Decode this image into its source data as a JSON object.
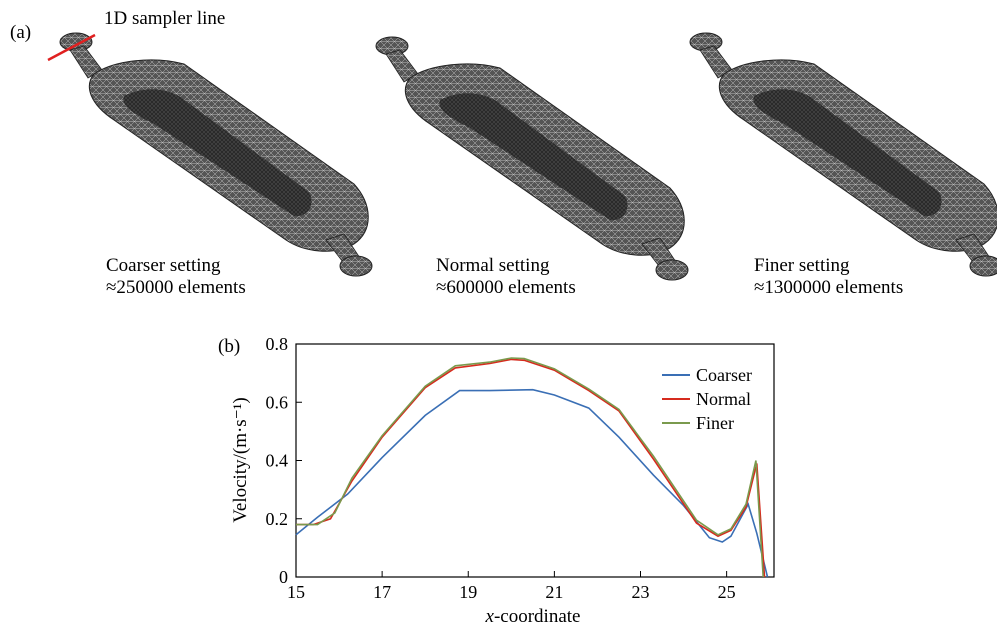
{
  "panel_a": {
    "label": "(a)",
    "annotation": "1D sampler line",
    "meshes": [
      {
        "setting": "Coarser setting",
        "elements": "≈250000 elements"
      },
      {
        "setting": "Normal setting",
        "elements": "≈600000 elements"
      },
      {
        "setting": "Finer setting",
        "elements": "≈1300000 elements"
      }
    ]
  },
  "panel_b": {
    "label": "(b)"
  },
  "chart_data": {
    "type": "line",
    "xlabel_italic": "x",
    "xlabel_rest": "-coordinate",
    "ylabel": "Velocity/(m·s⁻¹)",
    "xlim": [
      15,
      26.1
    ],
    "ylim": [
      0,
      0.8
    ],
    "xticks": [
      "15",
      "17",
      "19",
      "21",
      "23",
      "25"
    ],
    "yticks": [
      "0",
      "0.2",
      "0.4",
      "0.6",
      "0.8"
    ],
    "legend_position": "top-right",
    "series": [
      {
        "name": "Coarser",
        "color": "#3a6fb5",
        "x": [
          15,
          15.5,
          16.2,
          17,
          18,
          18.8,
          19.5,
          20.5,
          21,
          21.8,
          22.5,
          23.3,
          24,
          24.6,
          24.9,
          25.1,
          25.5,
          25.7,
          25.95
        ],
        "y": [
          0.145,
          0.205,
          0.285,
          0.41,
          0.555,
          0.64,
          0.64,
          0.643,
          0.625,
          0.58,
          0.48,
          0.35,
          0.245,
          0.135,
          0.12,
          0.14,
          0.25,
          0.15,
          0
        ]
      },
      {
        "name": "Normal",
        "color": "#d62b1e",
        "x": [
          15,
          15.4,
          15.8,
          16.3,
          17,
          18,
          18.7,
          19.5,
          20,
          20.3,
          21,
          21.8,
          22.5,
          23.3,
          24.3,
          24.8,
          25.1,
          25.45,
          25.7,
          25.88
        ],
        "y": [
          0.18,
          0.18,
          0.2,
          0.33,
          0.48,
          0.65,
          0.718,
          0.733,
          0.747,
          0.744,
          0.71,
          0.64,
          0.57,
          0.405,
          0.185,
          0.14,
          0.16,
          0.24,
          0.39,
          0
        ]
      },
      {
        "name": "Finer",
        "color": "#7a9a4d",
        "x": [
          15,
          15.5,
          15.9,
          16.3,
          17,
          18,
          18.7,
          19.5,
          20,
          20.3,
          21,
          21.8,
          22.5,
          23.3,
          24.3,
          24.8,
          25.1,
          25.45,
          25.68,
          25.85
        ],
        "y": [
          0.18,
          0.18,
          0.22,
          0.34,
          0.485,
          0.655,
          0.725,
          0.738,
          0.752,
          0.75,
          0.715,
          0.645,
          0.575,
          0.415,
          0.195,
          0.145,
          0.165,
          0.25,
          0.4,
          0
        ]
      }
    ]
  }
}
